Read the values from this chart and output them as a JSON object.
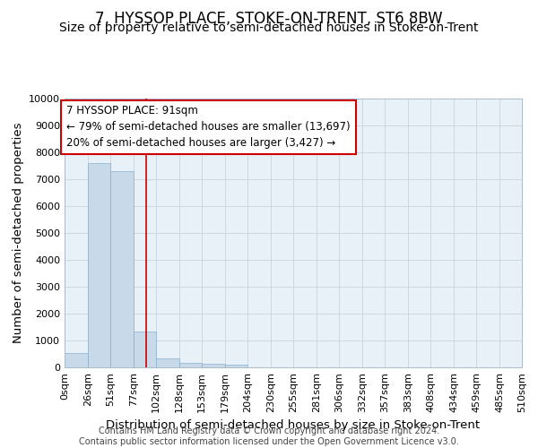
{
  "title": "7, HYSSOP PLACE, STOKE-ON-TRENT, ST6 8BW",
  "subtitle": "Size of property relative to semi-detached houses in Stoke-on-Trent",
  "xlabel": "Distribution of semi-detached houses by size in Stoke-on-Trent",
  "ylabel": "Number of semi-detached properties",
  "bin_labels": [
    "0sqm",
    "26sqm",
    "51sqm",
    "77sqm",
    "102sqm",
    "128sqm",
    "153sqm",
    "179sqm",
    "204sqm",
    "230sqm",
    "255sqm",
    "281sqm",
    "306sqm",
    "332sqm",
    "357sqm",
    "383sqm",
    "408sqm",
    "434sqm",
    "459sqm",
    "485sqm",
    "510sqm"
  ],
  "bar_values": [
    550,
    7600,
    7300,
    1350,
    350,
    175,
    125,
    100,
    0,
    0,
    0,
    0,
    0,
    0,
    0,
    0,
    0,
    0,
    0,
    0
  ],
  "bar_color": "#c8d9ea",
  "bar_edge_color": "#8ab0cc",
  "property_line_x": 91,
  "property_line_color": "#cc0000",
  "annotation_line1": "7 HYSSOP PLACE: 91sqm",
  "annotation_line2": "← 79% of semi-detached houses are smaller (13,697)",
  "annotation_line3": "20% of semi-detached houses are larger (3,427) →",
  "annotation_box_color": "#ffffff",
  "annotation_box_edge": "#cc0000",
  "ylim": [
    0,
    10000
  ],
  "yticks": [
    0,
    1000,
    2000,
    3000,
    4000,
    5000,
    6000,
    7000,
    8000,
    9000,
    10000
  ],
  "ytick_labels": [
    "0",
    "1000",
    "2000",
    "3000",
    "4000",
    "5000",
    "6000",
    "7000",
    "8000",
    "9000",
    "10000"
  ],
  "grid_color": "#c8d4e0",
  "background_color": "#dce8f0",
  "plot_bg_color": "#e8f0f8",
  "footer_text": "Contains HM Land Registry data © Crown copyright and database right 2024.\nContains public sector information licensed under the Open Government Licence v3.0.",
  "title_fontsize": 12,
  "subtitle_fontsize": 10,
  "axis_label_fontsize": 9.5,
  "tick_fontsize": 8,
  "annotation_fontsize": 8.5,
  "footer_fontsize": 7,
  "bin_edges": [
    0,
    26,
    51,
    77,
    102,
    128,
    153,
    179,
    204,
    230,
    255,
    281,
    306,
    332,
    357,
    383,
    408,
    434,
    459,
    485,
    510
  ]
}
